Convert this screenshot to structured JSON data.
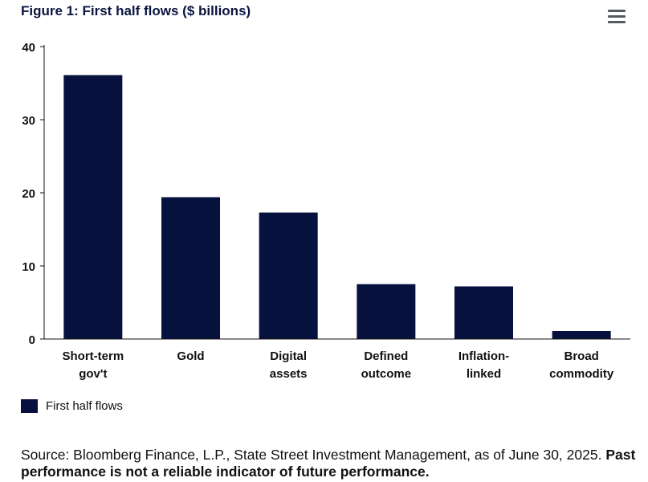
{
  "title": "Figure 1: First half flows ($ billions)",
  "menu_icon": "hamburger-menu-icon",
  "colors": {
    "bar": "#06113d",
    "axis": "#111111",
    "menu": "#555a60"
  },
  "chart_data": {
    "type": "bar",
    "categories": [
      [
        "Short-term",
        "gov't"
      ],
      [
        "Gold"
      ],
      [
        "Digital",
        "assets"
      ],
      [
        "Defined",
        "outcome"
      ],
      [
        "Inflation-",
        "linked"
      ],
      [
        "Broad",
        "commodity"
      ]
    ],
    "series": [
      {
        "name": "First half flows",
        "values": [
          36.1,
          19.4,
          17.3,
          7.5,
          7.2,
          1.1
        ]
      }
    ],
    "ylim": [
      0,
      40
    ],
    "yticks": [
      0,
      10,
      20,
      30,
      40
    ],
    "grid": false,
    "legend": "bottom-left"
  },
  "source": {
    "text": "Source: Bloomberg Finance, L.P., State Street Investment Management, as of June 30, 2025.",
    "disclaimer": "Past performance is not a reliable indicator of future performance."
  }
}
